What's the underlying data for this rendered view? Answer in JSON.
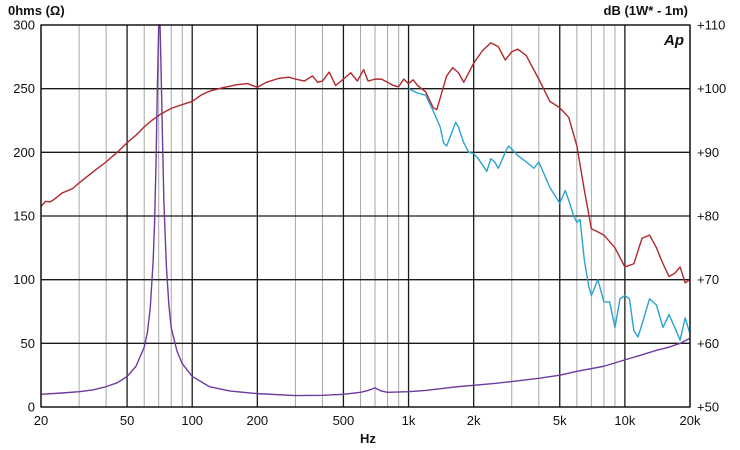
{
  "chart_data": {
    "type": "line",
    "title_left": "0hms (Ω)",
    "title_right": "dB (1W* - 1m)",
    "logo": "Ap",
    "xlabel": "Hz",
    "x_scale": "log",
    "xlim": [
      20,
      20000
    ],
    "ylim_left": [
      0,
      300
    ],
    "ylim_right": [
      50,
      110
    ],
    "grid": true,
    "x_ticks": [
      {
        "v": 20,
        "label": "20"
      },
      {
        "v": 50,
        "label": "50"
      },
      {
        "v": 100,
        "label": "100"
      },
      {
        "v": 200,
        "label": "200"
      },
      {
        "v": 500,
        "label": "500"
      },
      {
        "v": 1000,
        "label": "1k"
      },
      {
        "v": 2000,
        "label": "2k"
      },
      {
        "v": 5000,
        "label": "5k"
      },
      {
        "v": 10000,
        "label": "10k"
      },
      {
        "v": 20000,
        "label": "20k"
      }
    ],
    "y_left_ticks": [
      {
        "v": 0,
        "label": "0"
      },
      {
        "v": 50,
        "label": "50"
      },
      {
        "v": 100,
        "label": "100"
      },
      {
        "v": 150,
        "label": "150"
      },
      {
        "v": 200,
        "label": "200"
      },
      {
        "v": 250,
        "label": "250"
      },
      {
        "v": 300,
        "label": "300"
      }
    ],
    "y_right_ticks": [
      {
        "v": 50,
        "label": "+50"
      },
      {
        "v": 60,
        "label": "+60"
      },
      {
        "v": 70,
        "label": "+70"
      },
      {
        "v": 80,
        "label": "+80"
      },
      {
        "v": 90,
        "label": "+90"
      },
      {
        "v": 100,
        "label": "+100"
      },
      {
        "v": 110,
        "label": "+110"
      }
    ],
    "series": [
      {
        "axis": "right",
        "color": "#b0282c",
        "points": [
          [
            20,
            81.5
          ],
          [
            21,
            82.3
          ],
          [
            22,
            82.2
          ],
          [
            23,
            82.6
          ],
          [
            25,
            83.6
          ],
          [
            28,
            84.3
          ],
          [
            30,
            85.2
          ],
          [
            35,
            87.0
          ],
          [
            40,
            88.5
          ],
          [
            45,
            90.0
          ],
          [
            50,
            91.5
          ],
          [
            55,
            92.7
          ],
          [
            60,
            94.0
          ],
          [
            65,
            95.0
          ],
          [
            70,
            95.8
          ],
          [
            75,
            96.4
          ],
          [
            80,
            96.9
          ],
          [
            90,
            97.5
          ],
          [
            100,
            98.0
          ],
          [
            110,
            99.0
          ],
          [
            120,
            99.6
          ],
          [
            140,
            100.2
          ],
          [
            160,
            100.6
          ],
          [
            180,
            100.8
          ],
          [
            200,
            100.2
          ],
          [
            220,
            101.0
          ],
          [
            250,
            101.6
          ],
          [
            280,
            101.8
          ],
          [
            300,
            101.5
          ],
          [
            330,
            101.2
          ],
          [
            360,
            102.0
          ],
          [
            380,
            101.0
          ],
          [
            400,
            101.2
          ],
          [
            430,
            102.6
          ],
          [
            460,
            100.5
          ],
          [
            500,
            101.5
          ],
          [
            540,
            102.5
          ],
          [
            580,
            101.2
          ],
          [
            620,
            103.0
          ],
          [
            650,
            101.2
          ],
          [
            700,
            101.5
          ],
          [
            750,
            101.5
          ],
          [
            800,
            101.0
          ],
          [
            850,
            100.5
          ],
          [
            900,
            100.3
          ],
          [
            950,
            101.5
          ],
          [
            1000,
            100.8
          ],
          [
            1050,
            101.4
          ],
          [
            1100,
            100.5
          ],
          [
            1200,
            99.5
          ],
          [
            1300,
            97.0
          ],
          [
            1350,
            96.7
          ],
          [
            1400,
            98.5
          ],
          [
            1500,
            102.0
          ],
          [
            1600,
            103.3
          ],
          [
            1700,
            102.5
          ],
          [
            1800,
            101.0
          ],
          [
            2000,
            104.0
          ],
          [
            2200,
            106.0
          ],
          [
            2400,
            107.2
          ],
          [
            2600,
            106.6
          ],
          [
            2800,
            104.5
          ],
          [
            3000,
            105.8
          ],
          [
            3200,
            106.2
          ],
          [
            3500,
            105.2
          ],
          [
            4000,
            101.5
          ],
          [
            4500,
            98.0
          ],
          [
            5000,
            97.0
          ],
          [
            5500,
            95.5
          ],
          [
            6000,
            91.0
          ],
          [
            6500,
            84.0
          ],
          [
            7000,
            78.0
          ],
          [
            7500,
            77.5
          ],
          [
            8000,
            77.0
          ],
          [
            9000,
            75.0
          ],
          [
            10000,
            72.0
          ],
          [
            11000,
            72.5
          ],
          [
            12000,
            76.5
          ],
          [
            13000,
            77.0
          ],
          [
            14000,
            75.0
          ],
          [
            15000,
            72.5
          ],
          [
            16000,
            70.5
          ],
          [
            17000,
            71.0
          ],
          [
            18000,
            72.0
          ],
          [
            19000,
            69.5
          ],
          [
            20000,
            70.0
          ]
        ]
      },
      {
        "axis": "right",
        "color": "#2aa3cf",
        "points": [
          [
            1000,
            100.0
          ],
          [
            1100,
            99.3
          ],
          [
            1200,
            99.0
          ],
          [
            1300,
            96.5
          ],
          [
            1400,
            94.0
          ],
          [
            1450,
            91.5
          ],
          [
            1500,
            91.0
          ],
          [
            1600,
            93.5
          ],
          [
            1650,
            94.7
          ],
          [
            1700,
            94.0
          ],
          [
            1800,
            91.5
          ],
          [
            1900,
            90.0
          ],
          [
            2000,
            89.8
          ],
          [
            2100,
            89.0
          ],
          [
            2200,
            88.0
          ],
          [
            2300,
            87.0
          ],
          [
            2400,
            89.0
          ],
          [
            2500,
            88.5
          ],
          [
            2600,
            87.5
          ],
          [
            2800,
            90.0
          ],
          [
            2900,
            91.0
          ],
          [
            3000,
            90.5
          ],
          [
            3200,
            89.5
          ],
          [
            3500,
            88.5
          ],
          [
            3800,
            87.5
          ],
          [
            4000,
            88.5
          ],
          [
            4500,
            84.5
          ],
          [
            5000,
            82.0
          ],
          [
            5300,
            84.0
          ],
          [
            5500,
            82.5
          ],
          [
            5800,
            80.0
          ],
          [
            6000,
            79.0
          ],
          [
            6200,
            79.5
          ],
          [
            6500,
            73.0
          ],
          [
            6800,
            69.0
          ],
          [
            7000,
            67.5
          ],
          [
            7500,
            70.0
          ],
          [
            8000,
            66.5
          ],
          [
            8500,
            66.5
          ],
          [
            9000,
            62.5
          ],
          [
            9500,
            67.0
          ],
          [
            10000,
            67.5
          ],
          [
            10500,
            67.0
          ],
          [
            11000,
            62.0
          ],
          [
            11500,
            61.0
          ],
          [
            12000,
            63.0
          ],
          [
            13000,
            67.0
          ],
          [
            14000,
            66.0
          ],
          [
            15000,
            62.5
          ],
          [
            16000,
            64.5
          ],
          [
            17000,
            62.5
          ],
          [
            18000,
            60.5
          ],
          [
            19000,
            64.0
          ],
          [
            20000,
            61.5
          ]
        ]
      },
      {
        "axis": "left",
        "color": "#6e3a9e",
        "points": [
          [
            20,
            10.0
          ],
          [
            25,
            11.0
          ],
          [
            30,
            12.0
          ],
          [
            35,
            13.5
          ],
          [
            40,
            16.0
          ],
          [
            45,
            19.0
          ],
          [
            50,
            24.0
          ],
          [
            55,
            32.0
          ],
          [
            60,
            47.0
          ],
          [
            62,
            58.0
          ],
          [
            64,
            78.0
          ],
          [
            66,
            115.0
          ],
          [
            67,
            145.0
          ],
          [
            68,
            190.0
          ],
          [
            69,
            250.0
          ],
          [
            70,
            300.0
          ],
          [
            71,
            300.0
          ],
          [
            72,
            255.0
          ],
          [
            73,
            205.0
          ],
          [
            74,
            160.0
          ],
          [
            76,
            110.0
          ],
          [
            78,
            80.0
          ],
          [
            80,
            62.0
          ],
          [
            85,
            44.0
          ],
          [
            90,
            34.0
          ],
          [
            100,
            24.0
          ],
          [
            120,
            16.0
          ],
          [
            150,
            12.5
          ],
          [
            200,
            10.5
          ],
          [
            300,
            9.0
          ],
          [
            400,
            9.2
          ],
          [
            500,
            10.0
          ],
          [
            600,
            11.5
          ],
          [
            650,
            13.0
          ],
          [
            700,
            15.0
          ],
          [
            750,
            12.5
          ],
          [
            800,
            11.5
          ],
          [
            1000,
            12.0
          ],
          [
            1200,
            13.0
          ],
          [
            1500,
            15.0
          ],
          [
            1700,
            16.0
          ],
          [
            2000,
            17.0
          ],
          [
            2500,
            18.5
          ],
          [
            3000,
            20.0
          ],
          [
            4000,
            22.5
          ],
          [
            5000,
            25.0
          ],
          [
            6000,
            28.0
          ],
          [
            8000,
            32.0
          ],
          [
            10000,
            37.0
          ],
          [
            12000,
            41.0
          ],
          [
            14000,
            44.5
          ],
          [
            16000,
            47.0
          ],
          [
            18000,
            50.0
          ],
          [
            20000,
            54.0
          ]
        ]
      }
    ]
  }
}
